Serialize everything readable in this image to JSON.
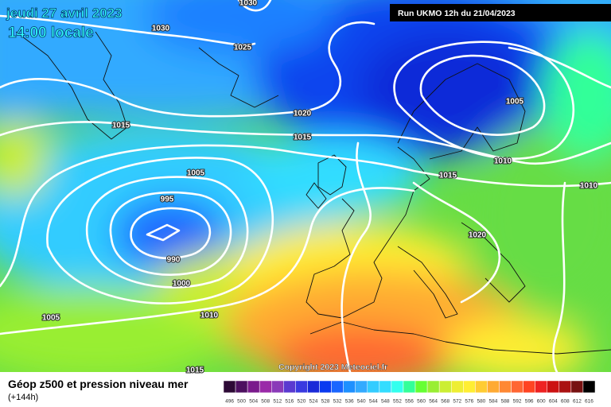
{
  "header": {
    "date": "jeudi 27 avril 2023",
    "time": "14:00 locale",
    "run": "Run UKMO 12h du 21/04/2023"
  },
  "isobar_labels": [
    1030,
    1030,
    1025,
    1020,
    1015,
    1015,
    1005,
    995,
    990,
    1000,
    1005,
    1010,
    1005,
    1010,
    1015,
    1010,
    1020,
    1015
  ],
  "copyright": "Copyright 2023 Meteociel.fr",
  "footer": {
    "title": "Géop z500 et pression niveau mer",
    "lead_time": "(+144h)"
  },
  "scale": {
    "labels": [
      496,
      500,
      504,
      508,
      512,
      516,
      520,
      524,
      528,
      532,
      536,
      540,
      544,
      548,
      552,
      556,
      560,
      564,
      568,
      572,
      576,
      580,
      584,
      588,
      592,
      596,
      600,
      604,
      608,
      612,
      616
    ],
    "colors": [
      "#2d0a36",
      "#4d1060",
      "#7a1a8c",
      "#9a2aa8",
      "#8a3ab8",
      "#5a3ad0",
      "#3a3ae0",
      "#1a2ad8",
      "#0a3af0",
      "#1a66ff",
      "#1e90ff",
      "#33aaff",
      "#33ccff",
      "#33ddff",
      "#33ffee",
      "#33ff99",
      "#66ff33",
      "#99ee33",
      "#ccee33",
      "#eeee33",
      "#ffee33",
      "#ffcc33",
      "#ffaa33",
      "#ff8833",
      "#ff6633",
      "#ff4422",
      "#ee2222",
      "#cc1111",
      "#aa1111",
      "#771111",
      "#000000"
    ]
  }
}
